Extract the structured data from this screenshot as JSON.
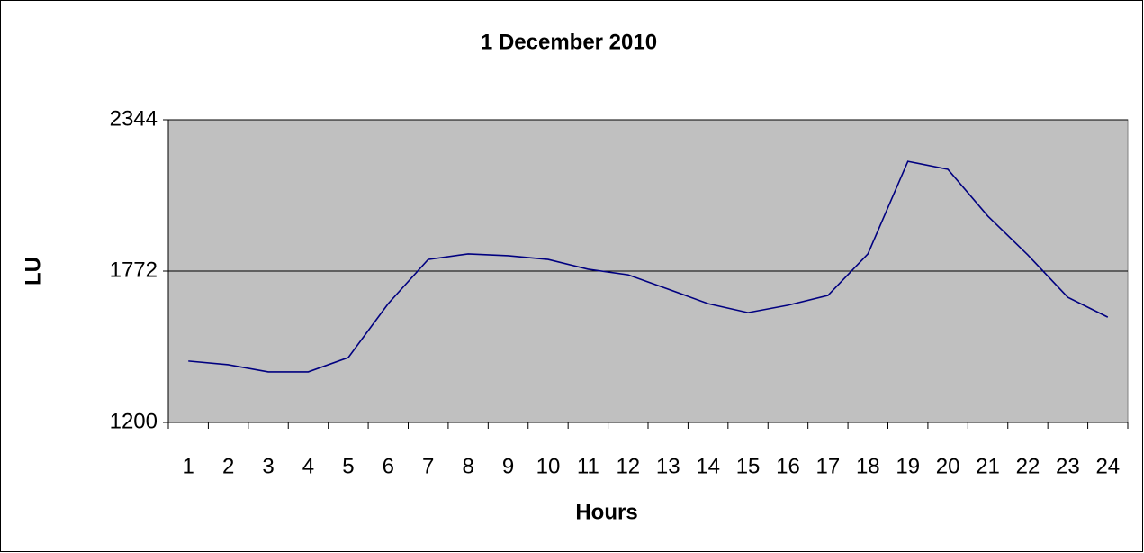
{
  "chart_data": {
    "type": "line",
    "title": "1 December 2010",
    "x_label": "Hours",
    "y_label": "LU",
    "categories": [
      "1",
      "2",
      "3",
      "4",
      "5",
      "6",
      "7",
      "8",
      "9",
      "10",
      "11",
      "12",
      "13",
      "14",
      "15",
      "16",
      "17",
      "18",
      "19",
      "20",
      "21",
      "22",
      "23",
      "24"
    ],
    "series": [
      {
        "name": "LU",
        "color": "#000080",
        "values": [
          1432,
          1418,
          1391,
          1391,
          1445,
          1649,
          1816,
          1837,
          1830,
          1816,
          1779,
          1758,
          1704,
          1649,
          1615,
          1643,
          1680,
          1837,
          2187,
          2157,
          1980,
          1833,
          1673,
          1598
        ]
      }
    ],
    "ylim": [
      1200,
      2344
    ],
    "yticks": [
      1200,
      1772,
      2344
    ],
    "grid": true,
    "plot_background": "#c0c0c0"
  }
}
